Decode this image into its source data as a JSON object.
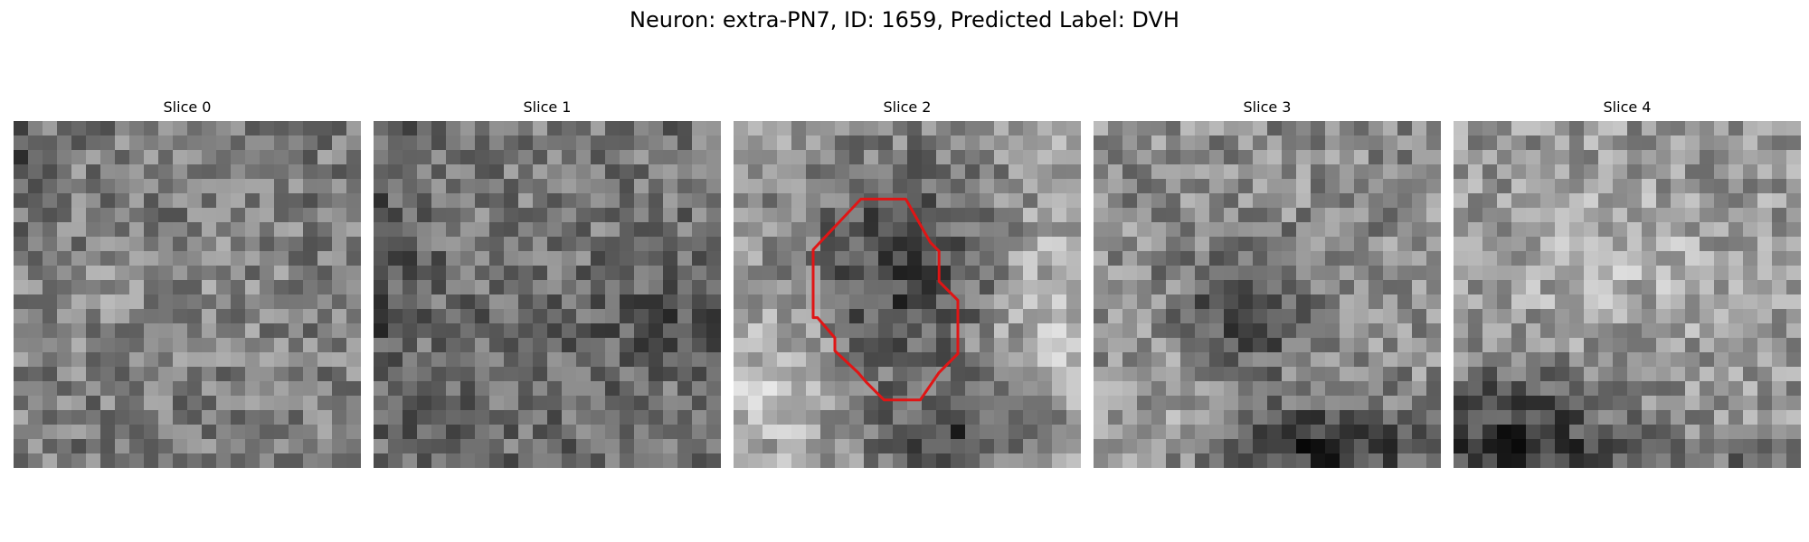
{
  "figure": {
    "title": "Neuron: extra-PN7, ID: 1659, Predicted Label: DVH"
  },
  "panels": [
    {
      "title": "Slice 0",
      "has_contour": false
    },
    {
      "title": "Slice 1",
      "has_contour": false
    },
    {
      "title": "Slice 2",
      "has_contour": true
    },
    {
      "title": "Slice 3",
      "has_contour": false
    },
    {
      "title": "Slice 4",
      "has_contour": false
    }
  ],
  "colors": {
    "background": "#ffffff",
    "contour": "#e01515"
  }
}
